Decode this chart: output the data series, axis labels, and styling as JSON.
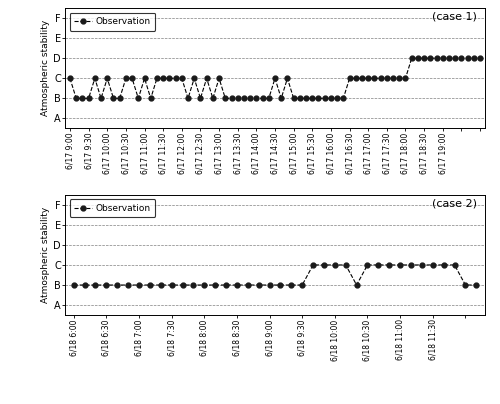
{
  "case1_tick_labels": [
    "6/17 9:00",
    "6/17 9:30",
    "6/17 10:00",
    "6/17 10:30",
    "6/17 11:00",
    "6/17 11:30",
    "6/17 12:00",
    "6/17 12:30",
    "6/17 13:00",
    "6/17 13:30",
    "6/17 14:00",
    "6/17 14:30",
    "6/17 15:00",
    "6/17 15:30",
    "6/17 16:00",
    "6/17 16:30",
    "6/17 17:00",
    "6/17 17:30",
    "6/17 18:00",
    "6/17 18:30",
    "6/17 19:00"
  ],
  "case2_tick_labels": [
    "6/18 6:00",
    "6/18 6:30",
    "6/18 7:00",
    "6/18 7:30",
    "6/18 8:00",
    "6/18 8:30",
    "6/18 9:00",
    "6/18 9:30",
    "6/18 10:00",
    "6/18 10:30",
    "6/18 11:00",
    "6/18 11:30"
  ],
  "case1_values": [
    3,
    2,
    2,
    2,
    3,
    2,
    3,
    2,
    2,
    3,
    3,
    2,
    3,
    2,
    3,
    3,
    3,
    3,
    3,
    2,
    3,
    2,
    3,
    2,
    3,
    2,
    2,
    2,
    2,
    2,
    2,
    2,
    2,
    3,
    2,
    3,
    2,
    2,
    2,
    2,
    2,
    2,
    2,
    2,
    2,
    3,
    3,
    3,
    3,
    3,
    3,
    3,
    3,
    3,
    3,
    4,
    4,
    4,
    4,
    4,
    4,
    4,
    4,
    4,
    4,
    4,
    4
  ],
  "case2_values": [
    2,
    2,
    2,
    2,
    2,
    2,
    2,
    2,
    2,
    2,
    2,
    2,
    2,
    2,
    2,
    2,
    2,
    2,
    2,
    2,
    2,
    2,
    3,
    3,
    3,
    3,
    2,
    3,
    3,
    3,
    3,
    3,
    3,
    3,
    3,
    3,
    2,
    2
  ],
  "stability_labels": [
    "A",
    "B",
    "C",
    "D",
    "E",
    "F"
  ],
  "stability_values": [
    1,
    2,
    3,
    4,
    5,
    6
  ],
  "line_color": "#000000",
  "marker_color": "#1a1a1a",
  "bg_color": "#ffffff",
  "legend_label": "Observation",
  "case1_title": "(case 1)",
  "case2_title": "(case 2)",
  "ylabel": "Atmospheric stability"
}
